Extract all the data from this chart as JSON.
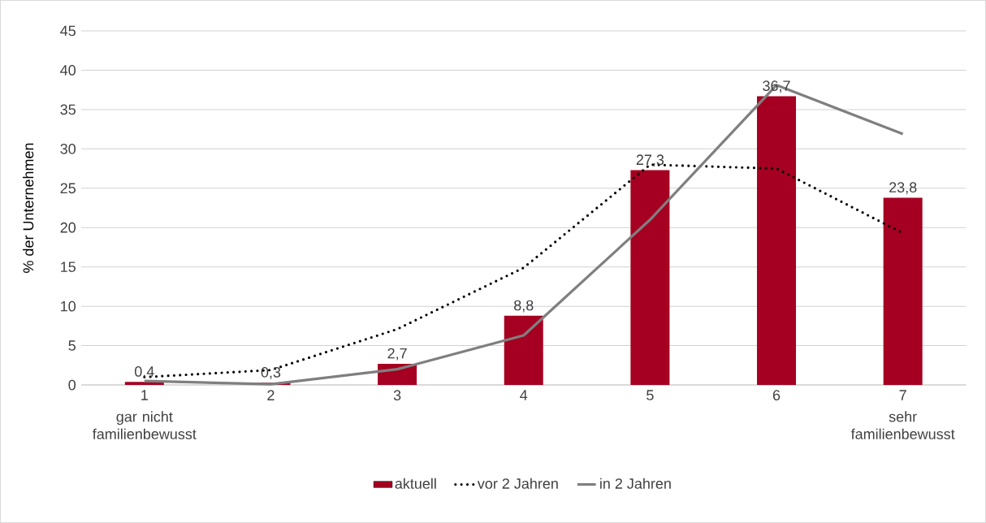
{
  "chart_data": {
    "type": "bar",
    "ylabel": "% der Unternehmen",
    "categories": [
      "1",
      "2",
      "3",
      "4",
      "5",
      "6",
      "7"
    ],
    "annotations": [
      "gar nicht familienbewusst",
      "sehr familienbewusst"
    ],
    "series": [
      {
        "name": "aktuell",
        "color": "#a50021",
        "values": [
          0.4,
          0.3,
          2.7,
          8.8,
          27.3,
          36.7,
          23.8
        ],
        "value_labels": [
          "0,4",
          "0,3",
          "2,7",
          "8,8",
          "27,3",
          "36,7",
          "23,8"
        ]
      },
      {
        "name": "vor 2 Jahren",
        "type": "line",
        "color": "#000000",
        "line_style": "dotted",
        "values": [
          1.0,
          1.9,
          7.1,
          14.9,
          28.0,
          27.5,
          19.3
        ]
      },
      {
        "name": "in 2 Jahren",
        "type": "line",
        "color": "#7f7f7f",
        "line_style": "solid",
        "values": [
          0.5,
          0.1,
          2.0,
          6.3,
          21.0,
          38.1,
          31.9
        ]
      }
    ],
    "ylim": [
      0,
      45
    ],
    "yticks": [
      0,
      5,
      10,
      15,
      20,
      25,
      30,
      35,
      40,
      45
    ],
    "grid": "y",
    "legend": "bottom"
  }
}
